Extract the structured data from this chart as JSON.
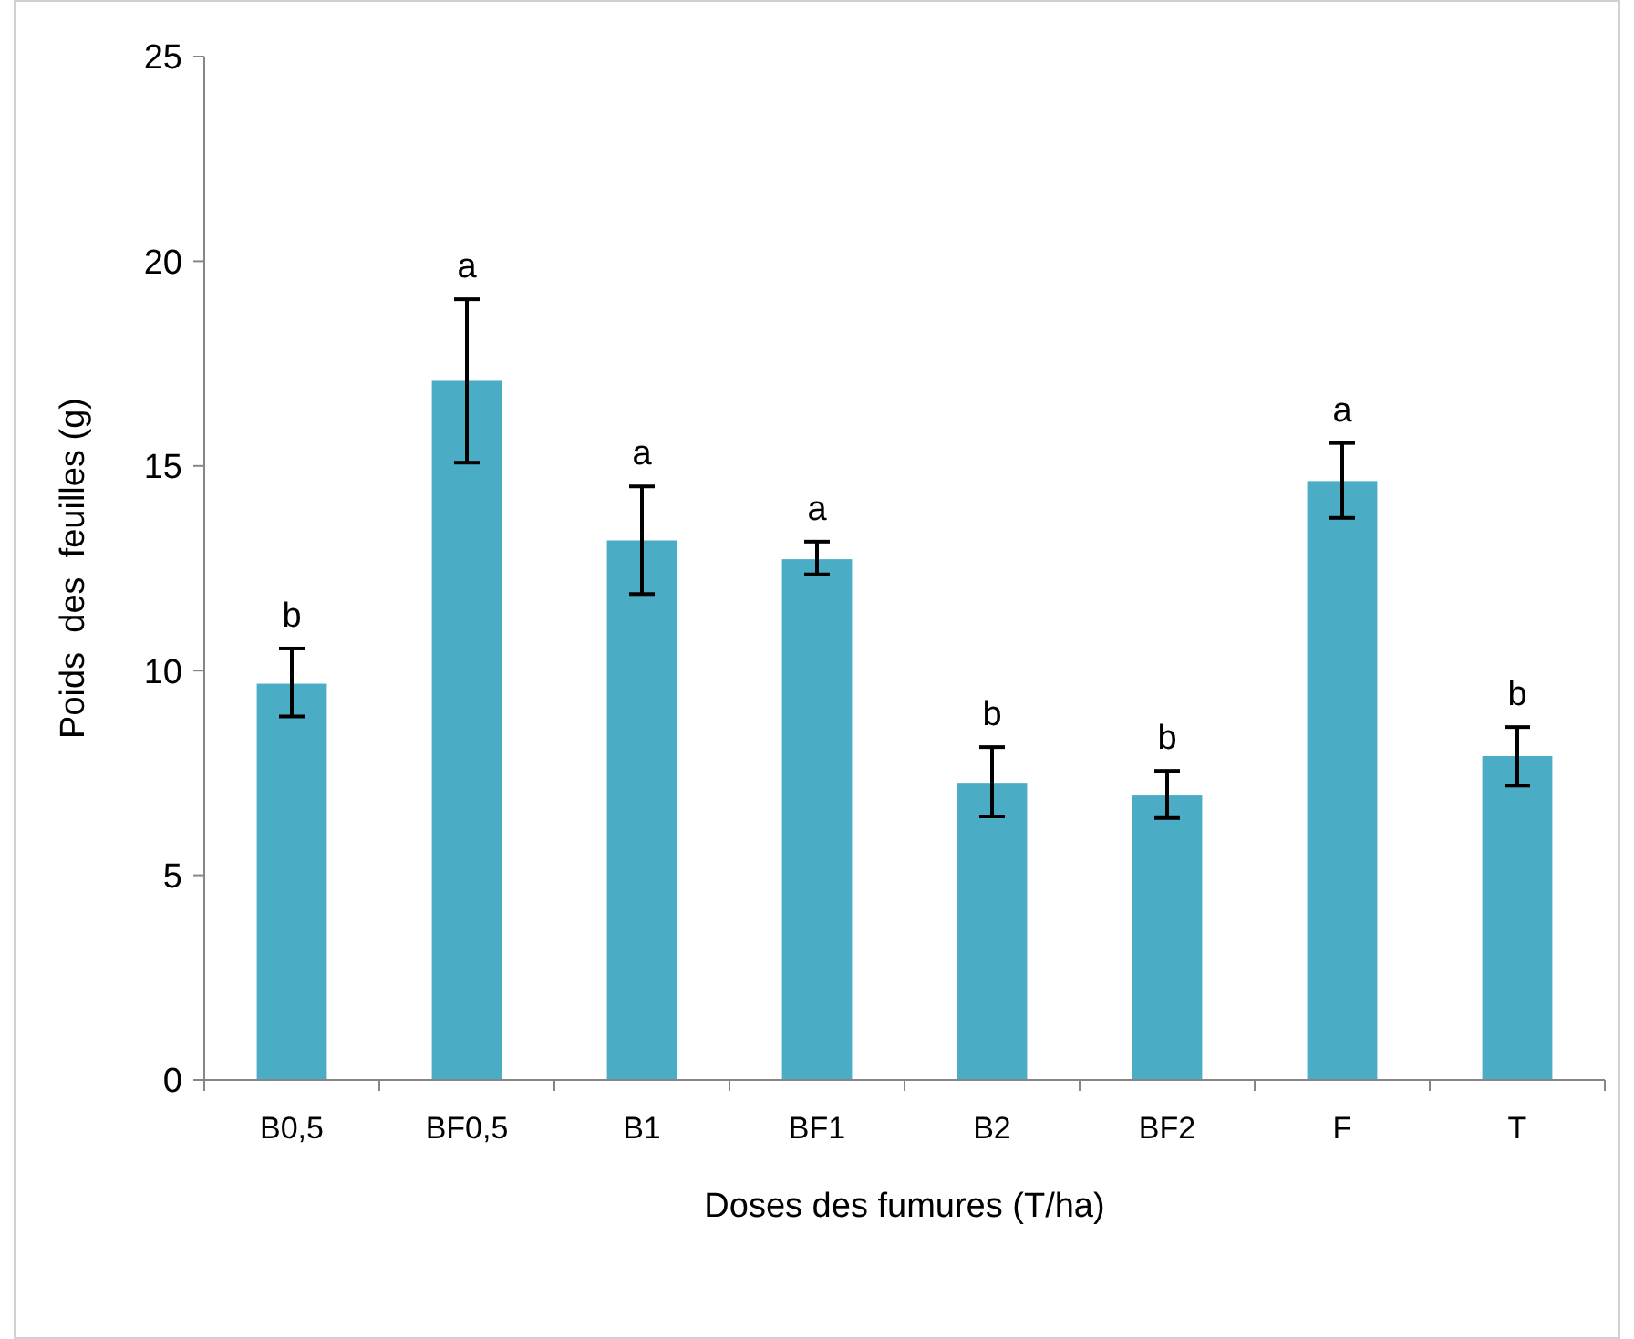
{
  "chart_data": {
    "type": "bar",
    "xlabel": "Doses des  fumures (T/ha)",
    "ylabel": "Poids  des  feuilles (g)",
    "categories": [
      "B0,5",
      "BF0,5",
      "B1",
      "BF1",
      "B2",
      "BF2",
      "F",
      "T"
    ],
    "values": [
      9.68,
      17.08,
      13.18,
      12.72,
      7.26,
      6.95,
      14.63,
      7.91
    ],
    "errors": [
      [
        8.88,
        10.54
      ],
      [
        15.08,
        19.07
      ],
      [
        11.87,
        14.5
      ],
      [
        12.35,
        13.15
      ],
      [
        6.44,
        8.13
      ],
      [
        6.4,
        7.55
      ],
      [
        13.73,
        15.56
      ],
      [
        7.19,
        8.62
      ]
    ],
    "color": "#4bacc6",
    "ylim": [
      0,
      25
    ],
    "yticks": [
      0,
      5,
      10,
      15,
      20,
      25
    ],
    "grid": false,
    "annotations": [
      {
        "text": "b",
        "x": "B0,5",
        "y": 10.54
      },
      {
        "text": "a",
        "x": "BF0,5",
        "y": 19.07
      },
      {
        "text": "a",
        "x": "B1",
        "y": 14.5
      },
      {
        "text": "a",
        "x": "BF1",
        "y": 13.15
      },
      {
        "text": "b",
        "x": "B2",
        "y": 8.13
      },
      {
        "text": "b",
        "x": "BF2",
        "y": 7.55
      },
      {
        "text": "a",
        "x": "F",
        "y": 15.56
      },
      {
        "text": "b",
        "x": "T",
        "y": 8.62
      }
    ]
  }
}
